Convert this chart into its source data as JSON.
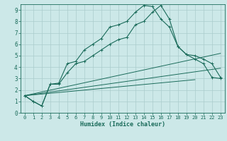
{
  "xlabel": "Humidex (Indice chaleur)",
  "bg_color": "#cce8e8",
  "grid_color": "#aacccc",
  "line_color": "#1a6b5a",
  "xlim": [
    -0.5,
    23.5
  ],
  "ylim": [
    0,
    9.5
  ],
  "xticks": [
    0,
    1,
    2,
    3,
    4,
    5,
    6,
    7,
    8,
    9,
    10,
    11,
    12,
    13,
    14,
    15,
    16,
    17,
    18,
    19,
    20,
    21,
    22,
    23
  ],
  "yticks": [
    0,
    1,
    2,
    3,
    4,
    5,
    6,
    7,
    8,
    9
  ],
  "series1_x": [
    0,
    1,
    2,
    3,
    4,
    5,
    6,
    7,
    8,
    9,
    10,
    11,
    12,
    13,
    14,
    15,
    16,
    17,
    18,
    19,
    20,
    21,
    22,
    23
  ],
  "series1_y": [
    1.5,
    1.0,
    0.6,
    2.5,
    2.6,
    4.3,
    4.5,
    5.5,
    6.0,
    6.5,
    7.5,
    7.7,
    8.0,
    8.8,
    9.4,
    9.3,
    8.2,
    7.5,
    5.8,
    5.1,
    5.0,
    4.7,
    4.3,
    3.1
  ],
  "series2_x": [
    0,
    1,
    2,
    3,
    4,
    5,
    6,
    7,
    8,
    9,
    10,
    11,
    12,
    13,
    14,
    15,
    16,
    17,
    18,
    19,
    20,
    21,
    22,
    23
  ],
  "series2_y": [
    1.5,
    1.0,
    0.6,
    2.5,
    2.5,
    3.5,
    4.3,
    4.5,
    5.0,
    5.5,
    6.0,
    6.4,
    6.6,
    7.7,
    8.0,
    8.8,
    9.4,
    8.2,
    5.8,
    5.1,
    4.7,
    4.3,
    3.1,
    3.0
  ],
  "line1_x": [
    0,
    20
  ],
  "line1_y": [
    1.5,
    2.9
  ],
  "line2_x": [
    0,
    23
  ],
  "line2_y": [
    1.5,
    3.9
  ],
  "line3_x": [
    0,
    23
  ],
  "line3_y": [
    1.5,
    5.2
  ]
}
